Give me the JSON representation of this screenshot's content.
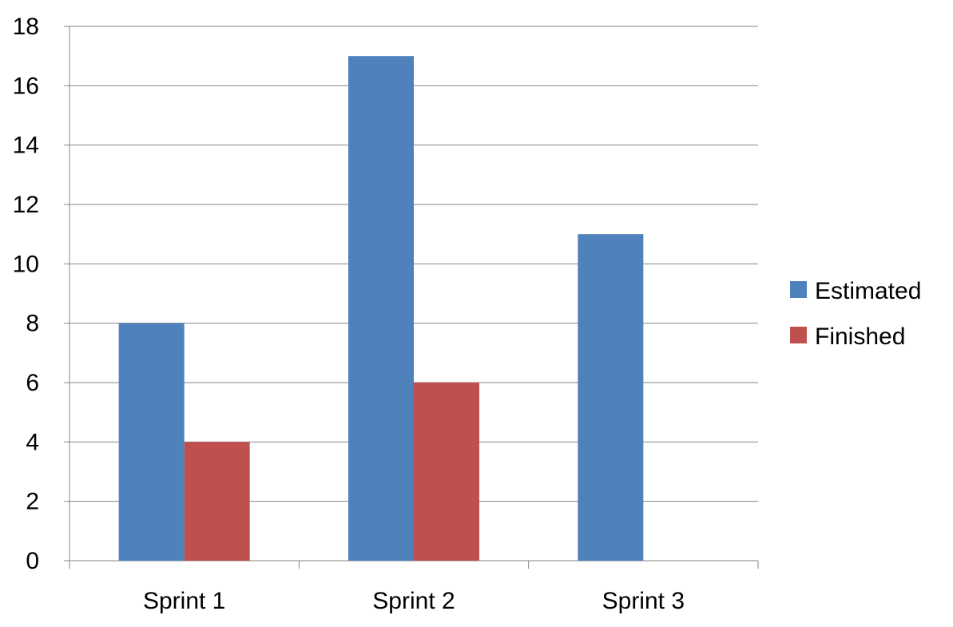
{
  "chart_data": {
    "type": "bar",
    "categories": [
      "Sprint 1",
      "Sprint 2",
      "Sprint 3"
    ],
    "series": [
      {
        "name": "Estimated",
        "values": [
          8,
          17,
          11
        ],
        "color": "#4F81BD"
      },
      {
        "name": "Finished",
        "values": [
          4,
          6,
          null
        ],
        "color": "#C0504D"
      }
    ],
    "title": "",
    "xlabel": "",
    "ylabel": "",
    "ylim": [
      0,
      18
    ],
    "yticks": [
      "0",
      "2",
      "4",
      "6",
      "8",
      "10",
      "12",
      "14",
      "16",
      "18"
    ],
    "grid": true,
    "legend_position": "right"
  }
}
